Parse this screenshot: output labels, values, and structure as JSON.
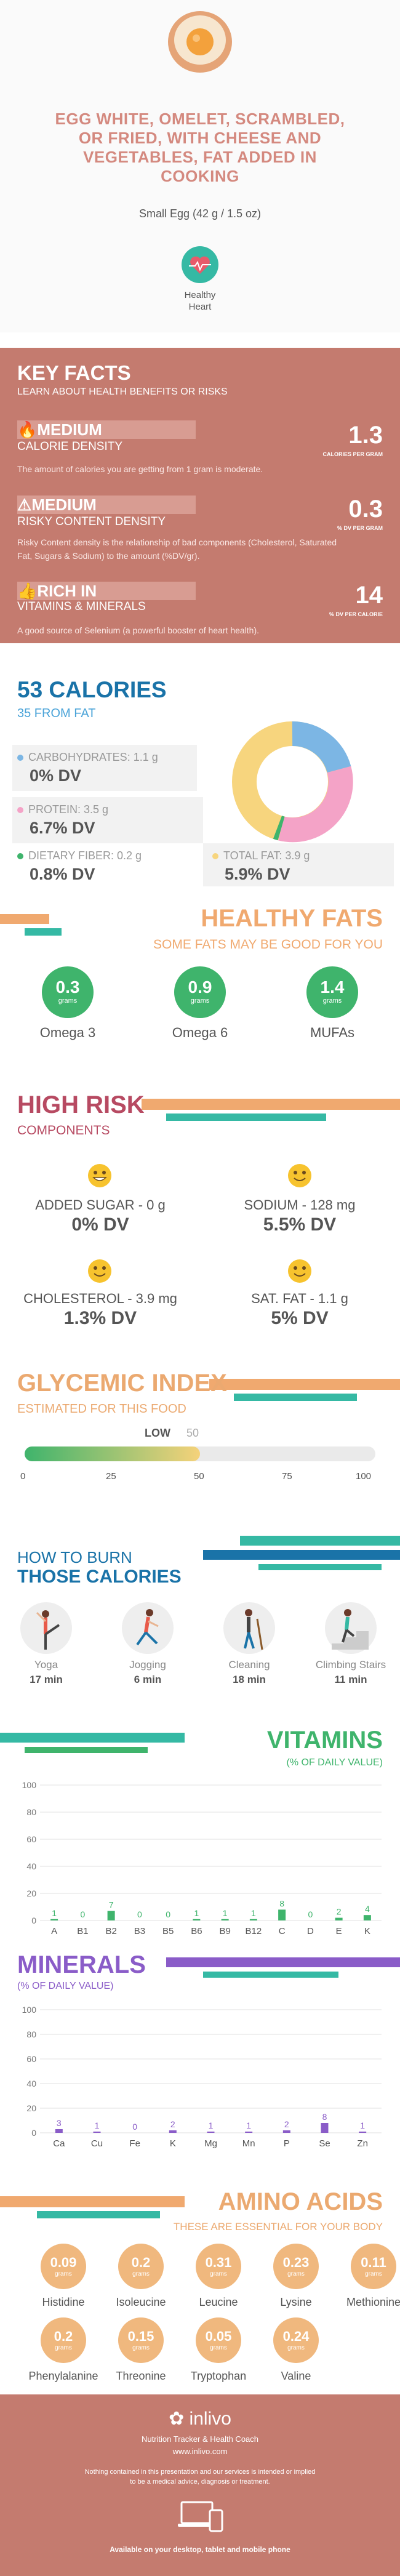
{
  "header": {
    "title_lines": [
      "EGG WHITE, OMELET, SCRAMBLED,",
      "OR FRIED, WITH CHEESE AND",
      "VEGETABLES, FAT ADDED IN",
      "COOKING"
    ],
    "serving": "Small Egg (42 g / 1.5 oz)",
    "badge_lines": [
      "Healthy",
      "Heart"
    ]
  },
  "key_facts": {
    "title": "KEY FACTS",
    "subtitle": "LEARN ABOUT HEALTH BENEFITS OR RISKS",
    "items": [
      {
        "level": "MEDIUM",
        "label": "CALORIE DENSITY",
        "value": "1.3",
        "unit": "CALORIES PER GRAM",
        "desc": "The amount of calories you are getting from 1 gram is moderate."
      },
      {
        "level": "MEDIUM",
        "label": "RISKY CONTENT DENSITY",
        "value": "0.3",
        "unit": "% DV PER GRAM",
        "desc": "Risky Content density is the relationship of bad components (Cholesterol, Saturated Fat, Sugars & Sodium) to the amount (%DV/gr)."
      },
      {
        "level": "RICH  IN",
        "label": "VITAMINS & MINERALS",
        "value": "14",
        "unit": "% DV PER CALORIE",
        "desc": "A good source of Selenium (a powerful booster of heart health)."
      }
    ]
  },
  "calories": {
    "title": "53 CALORIES",
    "from_fat": "35 FROM FAT",
    "carbs_label": "CARBOHYDRATES: 1.1 g",
    "carbs_dv": "0% DV",
    "protein_label": "PROTEIN: 3.5 g",
    "protein_dv": "6.7% DV",
    "fiber_label": "DIETARY FIBER: 0.2 g",
    "fiber_dv": "0.8% DV",
    "fat_label": "TOTAL FAT: 3.9 g",
    "fat_dv": "5.9% DV",
    "colors": {
      "carbs": "#7cb6e4",
      "protein": "#f4a3c7",
      "fiber": "#3fb46c",
      "fat": "#f7d57e"
    }
  },
  "healthy_fats": {
    "title": "HEALTHY FATS",
    "subtitle": "SOME FATS MAY BE GOOD FOR YOU",
    "unit": "grams",
    "items": [
      {
        "value": "0.3",
        "label": "Omega 3"
      },
      {
        "value": "0.9",
        "label": "Omega 6"
      },
      {
        "value": "1.4",
        "label": "MUFAs"
      }
    ]
  },
  "high_risk": {
    "title": "HIGH RISK",
    "subtitle": "COMPONENTS",
    "items": [
      {
        "label": "ADDED SUGAR - 0 g",
        "dv": "0% DV"
      },
      {
        "label": "SODIUM - 128 mg",
        "dv": "5.5% DV"
      },
      {
        "label": "CHOLESTEROL - 3.9 mg",
        "dv": "1.3% DV"
      },
      {
        "label": "SAT. FAT - 1.1 g",
        "dv": "5% DV"
      }
    ]
  },
  "glycemic": {
    "title": "GLYCEMIC INDEX",
    "subtitle": "ESTIMATED FOR THIS FOOD",
    "level": "LOW",
    "value": 50,
    "ticks": [
      "0",
      "25",
      "50",
      "75",
      "100"
    ]
  },
  "burn": {
    "title_1": "HOW TO BURN",
    "title_2": "THOSE CALORIES",
    "activities": [
      {
        "name": "Yoga",
        "minutes": "17 min",
        "icon": "yoga-icon"
      },
      {
        "name": "Jogging",
        "minutes": "6 min",
        "icon": "jogging-icon"
      },
      {
        "name": "Cleaning",
        "minutes": "18 min",
        "icon": "cleaning-icon"
      },
      {
        "name": "Climbing Stairs",
        "minutes": "11 min",
        "icon": "stairs-icon"
      }
    ]
  },
  "chart_data": [
    {
      "type": "bar",
      "title": "VITAMINS",
      "subtitle": "(% OF DAILY VALUE)",
      "categories": [
        "A",
        "B1",
        "B2",
        "B3",
        "B5",
        "B6",
        "B9",
        "B12",
        "C",
        "D",
        "E",
        "K"
      ],
      "values": [
        1,
        0,
        7,
        0,
        0,
        1,
        1,
        1,
        8,
        0,
        2,
        4
      ],
      "yticks": [
        "0",
        "20",
        "40",
        "60",
        "80",
        "100"
      ],
      "ylim": [
        0,
        100
      ],
      "color": "#3fb46c"
    },
    {
      "type": "bar",
      "title": "MINERALS",
      "subtitle": "(% OF DAILY VALUE)",
      "categories": [
        "Ca",
        "Cu",
        "Fe",
        "K",
        "Mg",
        "Mn",
        "P",
        "Se",
        "Zn"
      ],
      "values": [
        3,
        1,
        0,
        2,
        1,
        1,
        2,
        8,
        1
      ],
      "yticks": [
        "0",
        "20",
        "40",
        "60",
        "80",
        "100"
      ],
      "ylim": [
        0,
        100
      ],
      "color": "#8a5cc8"
    }
  ],
  "amino": {
    "title": "AMINO ACIDS",
    "subtitle": "THESE ARE ESSENTIAL FOR YOUR BODY",
    "unit": "grams",
    "items": [
      {
        "value": "0.09",
        "label": "Histidine"
      },
      {
        "value": "0.2",
        "label": "Isoleucine"
      },
      {
        "value": "0.31",
        "label": "Leucine"
      },
      {
        "value": "0.23",
        "label": "Lysine"
      },
      {
        "value": "0.11",
        "label": "Methionine"
      },
      {
        "value": "0.2",
        "label": "Phenylalanine"
      },
      {
        "value": "0.15",
        "label": "Threonine"
      },
      {
        "value": "0.05",
        "label": "Tryptophan"
      },
      {
        "value": "0.24",
        "label": "Valine"
      }
    ]
  },
  "footer": {
    "brand": "inlivo",
    "tagline": "Nutrition Tracker & Health Coach",
    "url": "www.inlivo.com",
    "disclaimer_1": "Nothing contained in this presentation and our services is intended or implied",
    "disclaimer_2": "to be a medical advice, diagnosis or treatment.",
    "available": "Available on your desktop, tablet and mobile phone"
  }
}
